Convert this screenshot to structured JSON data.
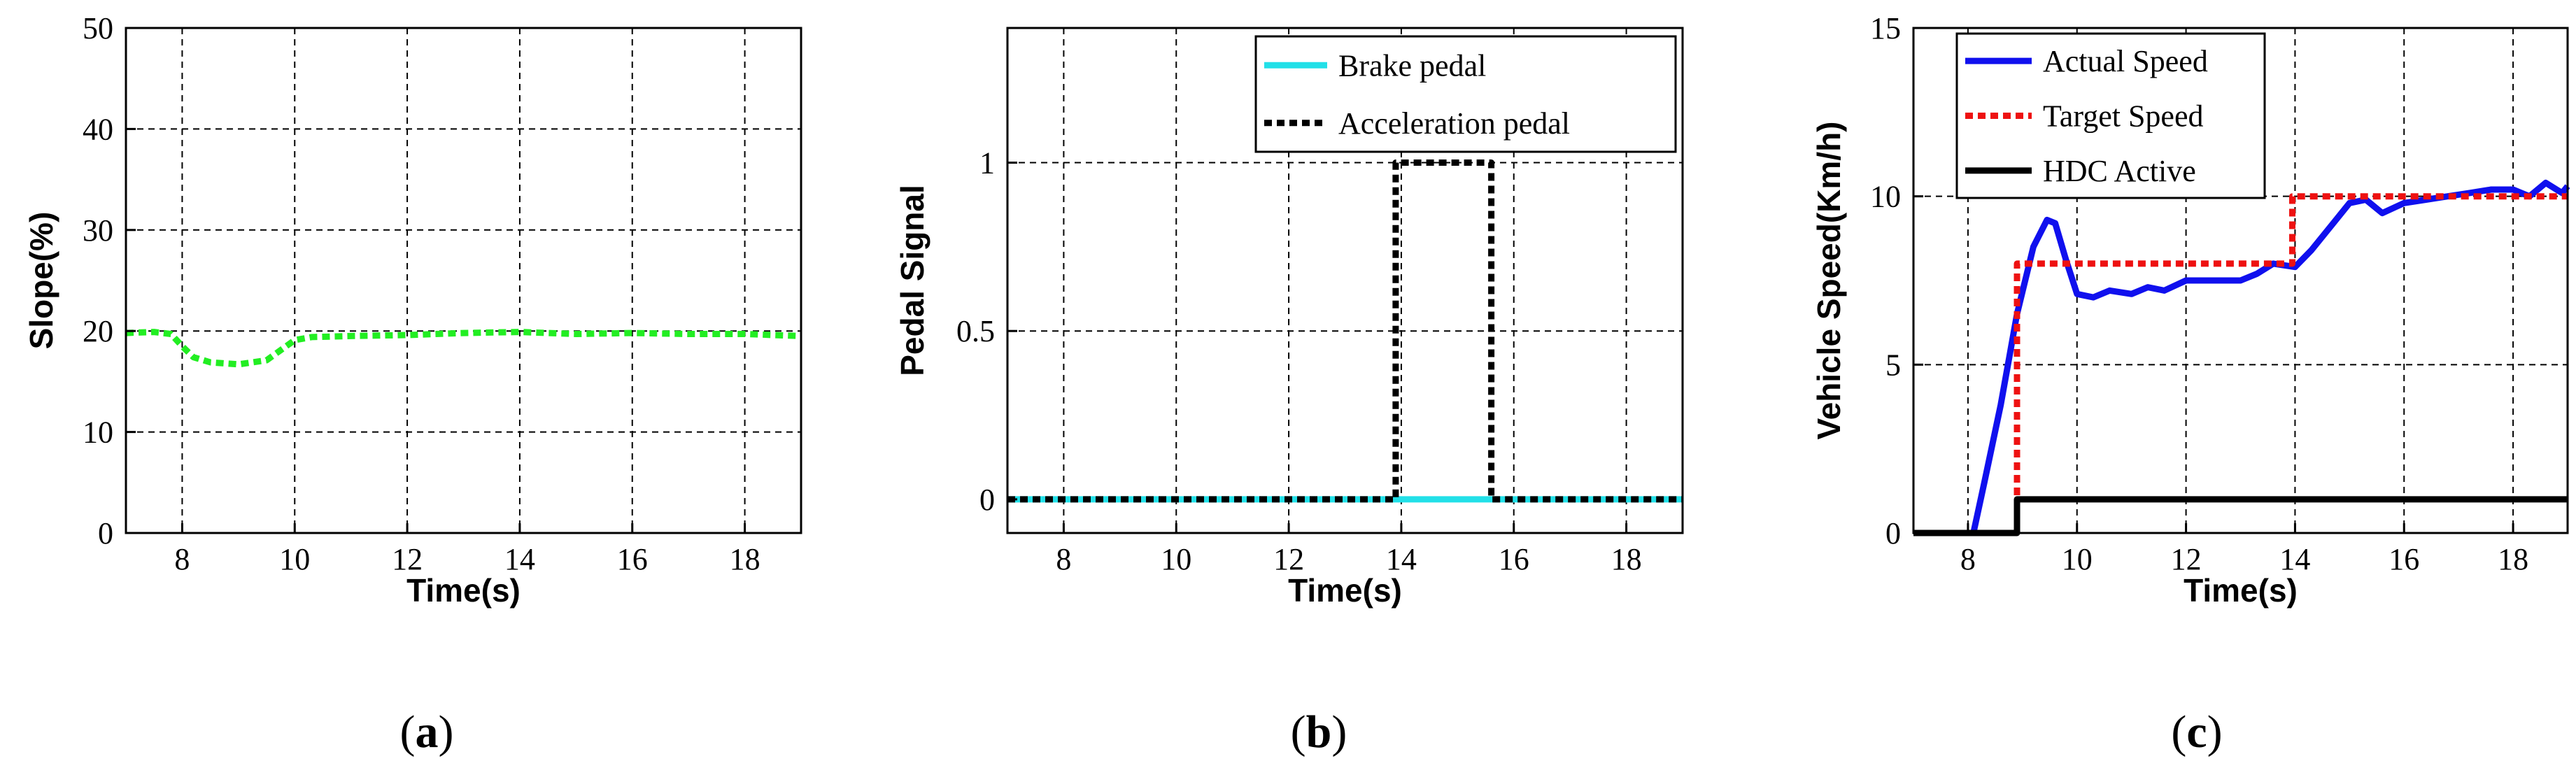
{
  "chart_data": [
    {
      "type": "line",
      "xlabel": "Time(s)",
      "ylabel": "Slope(%)",
      "xlim": [
        7,
        19
      ],
      "ylim": [
        0,
        50
      ],
      "xticks": [
        8,
        10,
        12,
        14,
        16,
        18
      ],
      "yticks": [
        0,
        10,
        20,
        30,
        40,
        50
      ],
      "grid": true,
      "caption_prefix": "(",
      "caption_letter": "a",
      "caption_suffix": ")",
      "series": [
        {
          "name": "",
          "color": "#22ee22",
          "style": "dotted",
          "x": [
            7,
            7.5,
            7.8,
            8.0,
            8.2,
            8.5,
            9.0,
            9.5,
            9.8,
            10.0,
            10.3,
            11,
            12,
            13,
            14,
            15,
            16,
            17,
            18,
            19
          ],
          "y": [
            19.8,
            19.9,
            19.7,
            18.5,
            17.4,
            16.9,
            16.7,
            17.1,
            18.3,
            19.1,
            19.4,
            19.5,
            19.6,
            19.8,
            19.9,
            19.7,
            19.8,
            19.7,
            19.7,
            19.5
          ]
        }
      ]
    },
    {
      "type": "line",
      "xlabel": "Time(s)",
      "ylabel": "Pedal Signal",
      "xlim": [
        7,
        19
      ],
      "ylim": [
        -0.1,
        1.4
      ],
      "xticks": [
        8,
        10,
        12,
        14,
        16,
        18
      ],
      "yticks": [
        0,
        0.5,
        1
      ],
      "ytick_labels": [
        "0",
        "0.5",
        "1"
      ],
      "grid": true,
      "legend_position": "top-right",
      "caption_prefix": "(",
      "caption_letter": "b",
      "caption_suffix": ")",
      "series": [
        {
          "name": "Brake pedal",
          "color": "#22e0e8",
          "style": "solid",
          "x": [
            7,
            19
          ],
          "y": [
            0,
            0
          ]
        },
        {
          "name": "Acceleration pedal",
          "color": "#000000",
          "style": "dotted",
          "x": [
            7,
            13.9,
            13.9,
            15.6,
            15.6,
            19
          ],
          "y": [
            0,
            0,
            1,
            1,
            0,
            0
          ]
        }
      ]
    },
    {
      "type": "line",
      "xlabel": "Time(s)",
      "ylabel": "Vehicle Speed(Km/h)",
      "xlim": [
        7,
        19
      ],
      "ylim": [
        0,
        15
      ],
      "xticks": [
        8,
        10,
        12,
        14,
        16,
        18
      ],
      "yticks": [
        0,
        5,
        10,
        15
      ],
      "grid": true,
      "legend_position": "top-left",
      "caption_prefix": "(",
      "caption_letter": "c",
      "caption_suffix": ")",
      "series": [
        {
          "name": "Actual Speed",
          "color": "#1010ee",
          "style": "solid",
          "x": [
            7,
            8.1,
            8.3,
            8.6,
            8.9,
            9.2,
            9.45,
            9.6,
            9.8,
            10.0,
            10.3,
            10.6,
            11.0,
            11.3,
            11.6,
            12.0,
            12.5,
            13.0,
            13.3,
            13.6,
            14.0,
            14.3,
            14.7,
            15.0,
            15.3,
            15.6,
            16.0,
            16.4,
            16.8,
            17.2,
            17.6,
            18.0,
            18.3,
            18.6,
            18.9,
            19.0
          ],
          "y": [
            0,
            0,
            1.5,
            3.8,
            6.5,
            8.5,
            9.3,
            9.2,
            8.1,
            7.1,
            7.0,
            7.2,
            7.1,
            7.3,
            7.2,
            7.5,
            7.5,
            7.5,
            7.7,
            8.0,
            7.9,
            8.4,
            9.2,
            9.8,
            9.9,
            9.5,
            9.8,
            9.9,
            10.0,
            10.1,
            10.2,
            10.2,
            10.0,
            10.4,
            10.1,
            10.3
          ]
        },
        {
          "name": "Target Speed",
          "color": "#ee1111",
          "style": "dotted",
          "x": [
            8.9,
            8.9,
            13.95,
            13.95,
            19
          ],
          "y": [
            0,
            8,
            8,
            10,
            10
          ]
        },
        {
          "name": "HDC Active",
          "color": "#000000",
          "style": "solid",
          "x": [
            7,
            8.9,
            8.9,
            19
          ],
          "y": [
            0,
            0,
            1,
            1
          ]
        }
      ]
    }
  ]
}
